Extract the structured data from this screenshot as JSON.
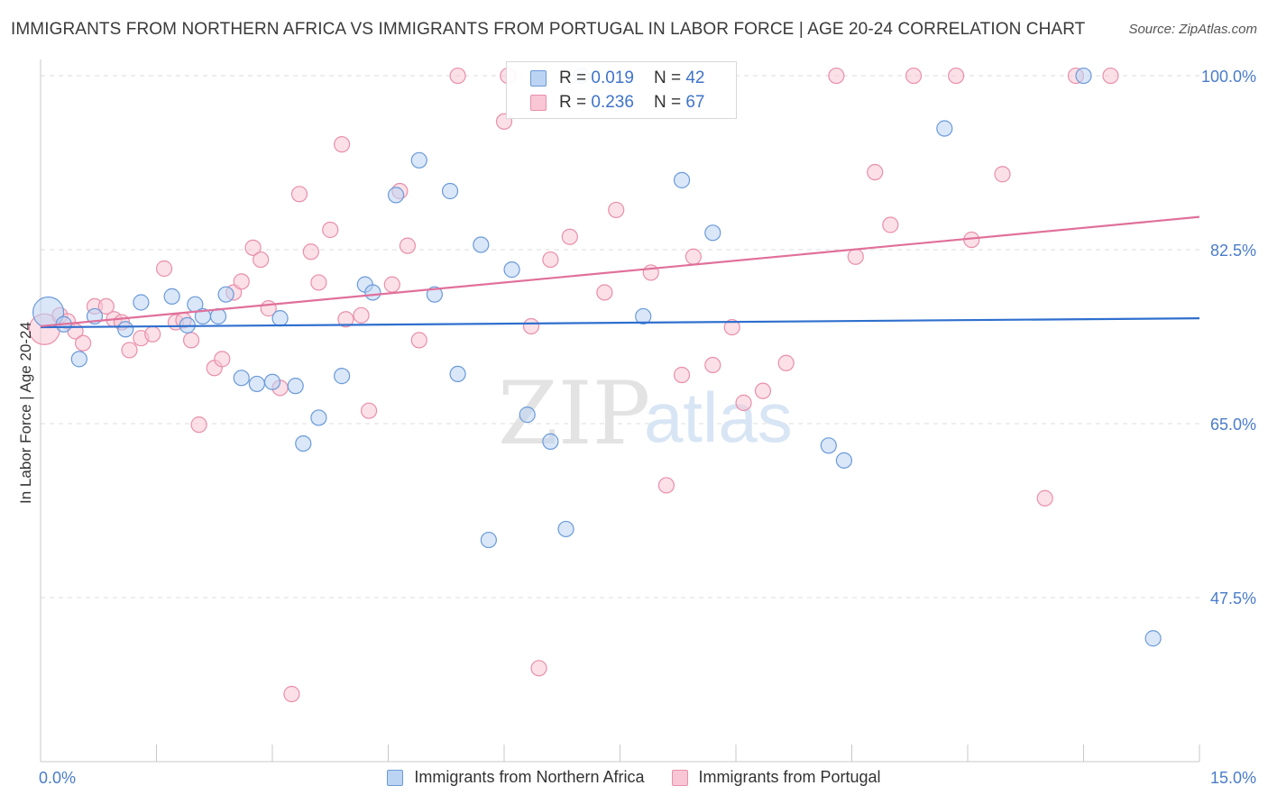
{
  "header": {
    "title": "IMMIGRANTS FROM NORTHERN AFRICA VS IMMIGRANTS FROM PORTUGAL IN LABOR FORCE | AGE 20-24 CORRELATION CHART",
    "source": "Source: ZipAtlas.com"
  },
  "watermark": {
    "zip": "ZIP",
    "atlas": "atlas"
  },
  "colors": {
    "blue_fill": "#bcd4f4",
    "blue_stroke": "#6a9ad8",
    "blue_line": "#2f6fce",
    "pink_fill": "#f8c6d4",
    "pink_stroke": "#e98fab",
    "pink_line": "#e0709a",
    "tick_label": "#4a7cc9",
    "grid": "#dddddd"
  },
  "legend": {
    "rows": [
      {
        "r_label": "R =",
        "r_value": "0.019",
        "n_label": "N =",
        "n_value": "42"
      },
      {
        "r_label": "R =",
        "r_value": "0.236",
        "n_label": "N =",
        "n_value": "67"
      }
    ]
  },
  "chart_data": {
    "type": "scatter",
    "title": "IMMIGRANTS FROM NORTHERN AFRICA VS IMMIGRANTS FROM PORTUGAL IN LABOR FORCE | AGE 20-24 CORRELATION CHART",
    "xlabel": "",
    "ylabel": "In Labor Force | Age 20-24",
    "xlim": [
      0,
      15
    ],
    "ylim": [
      31,
      102
    ],
    "x_tick_labels": [
      "0.0%",
      "15.0%"
    ],
    "y_ticks": [
      47.5,
      65.0,
      82.5,
      100.0
    ],
    "y_tick_labels": [
      "47.5%",
      "65.0%",
      "82.5%",
      "100.0%"
    ],
    "grid": "horizontal dashed",
    "legend_position": "top-center",
    "series": [
      {
        "name": "Immigrants from Northern Africa",
        "r": 0.019,
        "n": 42,
        "trend": {
          "x": [
            0,
            15
          ],
          "y": [
            74.7,
            75.6
          ]
        },
        "points": [
          {
            "x": 0.1,
            "y": 76.2,
            "big": true
          },
          {
            "x": 0.3,
            "y": 75.0
          },
          {
            "x": 0.5,
            "y": 71.5
          },
          {
            "x": 0.7,
            "y": 75.8
          },
          {
            "x": 1.1,
            "y": 74.5
          },
          {
            "x": 1.3,
            "y": 77.2
          },
          {
            "x": 1.7,
            "y": 77.8
          },
          {
            "x": 1.9,
            "y": 74.9
          },
          {
            "x": 2.0,
            "y": 77.0
          },
          {
            "x": 2.1,
            "y": 75.8
          },
          {
            "x": 2.3,
            "y": 75.8
          },
          {
            "x": 2.4,
            "y": 78.0
          },
          {
            "x": 2.6,
            "y": 69.6
          },
          {
            "x": 2.8,
            "y": 69.0
          },
          {
            "x": 3.0,
            "y": 69.2
          },
          {
            "x": 3.1,
            "y": 75.6
          },
          {
            "x": 3.3,
            "y": 68.8
          },
          {
            "x": 3.4,
            "y": 63.0
          },
          {
            "x": 3.6,
            "y": 65.6
          },
          {
            "x": 3.9,
            "y": 69.8
          },
          {
            "x": 4.2,
            "y": 79.0
          },
          {
            "x": 4.3,
            "y": 78.2
          },
          {
            "x": 4.6,
            "y": 88.0
          },
          {
            "x": 4.9,
            "y": 91.5
          },
          {
            "x": 5.1,
            "y": 78.0
          },
          {
            "x": 5.3,
            "y": 88.4
          },
          {
            "x": 5.4,
            "y": 70.0
          },
          {
            "x": 5.7,
            "y": 83.0
          },
          {
            "x": 5.8,
            "y": 53.3
          },
          {
            "x": 6.1,
            "y": 80.5
          },
          {
            "x": 6.3,
            "y": 65.9
          },
          {
            "x": 6.6,
            "y": 63.2
          },
          {
            "x": 6.8,
            "y": 54.4
          },
          {
            "x": 7.0,
            "y": 100.0
          },
          {
            "x": 7.8,
            "y": 75.8
          },
          {
            "x": 8.3,
            "y": 89.5
          },
          {
            "x": 8.7,
            "y": 84.2
          },
          {
            "x": 10.2,
            "y": 62.8
          },
          {
            "x": 10.4,
            "y": 61.3
          },
          {
            "x": 11.7,
            "y": 94.7
          },
          {
            "x": 13.5,
            "y": 100.0
          },
          {
            "x": 14.4,
            "y": 43.4
          }
        ]
      },
      {
        "name": "Immigrants from Portugal",
        "r": 0.236,
        "n": 67,
        "trend": {
          "x": [
            0,
            15
          ],
          "y": [
            74.8,
            85.8
          ]
        },
        "points": [
          {
            "x": 0.05,
            "y": 74.5,
            "big": true
          },
          {
            "x": 0.25,
            "y": 75.9
          },
          {
            "x": 0.35,
            "y": 75.3
          },
          {
            "x": 0.45,
            "y": 74.3
          },
          {
            "x": 0.55,
            "y": 73.1
          },
          {
            "x": 0.7,
            "y": 76.8
          },
          {
            "x": 0.85,
            "y": 76.8
          },
          {
            "x": 0.95,
            "y": 75.5
          },
          {
            "x": 1.05,
            "y": 75.2
          },
          {
            "x": 1.15,
            "y": 72.4
          },
          {
            "x": 1.3,
            "y": 73.6
          },
          {
            "x": 1.45,
            "y": 74.0
          },
          {
            "x": 1.6,
            "y": 80.6
          },
          {
            "x": 1.75,
            "y": 75.2
          },
          {
            "x": 1.85,
            "y": 75.4
          },
          {
            "x": 1.95,
            "y": 73.4
          },
          {
            "x": 2.05,
            "y": 64.9
          },
          {
            "x": 2.25,
            "y": 70.6
          },
          {
            "x": 2.35,
            "y": 71.5
          },
          {
            "x": 2.5,
            "y": 78.2
          },
          {
            "x": 2.6,
            "y": 79.3
          },
          {
            "x": 2.75,
            "y": 82.7
          },
          {
            "x": 2.85,
            "y": 81.5
          },
          {
            "x": 2.95,
            "y": 76.6
          },
          {
            "x": 3.1,
            "y": 68.6
          },
          {
            "x": 3.25,
            "y": 37.8
          },
          {
            "x": 3.35,
            "y": 88.1
          },
          {
            "x": 3.5,
            "y": 82.3
          },
          {
            "x": 3.6,
            "y": 79.2
          },
          {
            "x": 3.75,
            "y": 84.5
          },
          {
            "x": 3.9,
            "y": 93.1
          },
          {
            "x": 3.95,
            "y": 75.5
          },
          {
            "x": 4.15,
            "y": 75.9
          },
          {
            "x": 4.25,
            "y": 66.3
          },
          {
            "x": 4.55,
            "y": 79.0
          },
          {
            "x": 4.65,
            "y": 88.4
          },
          {
            "x": 4.75,
            "y": 82.9
          },
          {
            "x": 4.9,
            "y": 73.4
          },
          {
            "x": 5.4,
            "y": 100.0
          },
          {
            "x": 6.0,
            "y": 95.4
          },
          {
            "x": 6.05,
            "y": 100.0
          },
          {
            "x": 6.35,
            "y": 74.8
          },
          {
            "x": 6.45,
            "y": 40.4
          },
          {
            "x": 6.6,
            "y": 81.5
          },
          {
            "x": 6.85,
            "y": 83.8
          },
          {
            "x": 7.3,
            "y": 78.2
          },
          {
            "x": 7.45,
            "y": 86.5
          },
          {
            "x": 7.9,
            "y": 80.2
          },
          {
            "x": 8.1,
            "y": 58.8
          },
          {
            "x": 8.3,
            "y": 69.9
          },
          {
            "x": 8.45,
            "y": 81.8
          },
          {
            "x": 8.7,
            "y": 70.9
          },
          {
            "x": 8.95,
            "y": 74.7
          },
          {
            "x": 9.1,
            "y": 67.1
          },
          {
            "x": 9.35,
            "y": 68.3
          },
          {
            "x": 9.65,
            "y": 71.1
          },
          {
            "x": 10.3,
            "y": 100.0
          },
          {
            "x": 10.55,
            "y": 81.8
          },
          {
            "x": 10.8,
            "y": 90.3
          },
          {
            "x": 11.0,
            "y": 85.0
          },
          {
            "x": 11.3,
            "y": 100.0
          },
          {
            "x": 11.85,
            "y": 100.0
          },
          {
            "x": 12.05,
            "y": 83.5
          },
          {
            "x": 12.45,
            "y": 90.1
          },
          {
            "x": 13.0,
            "y": 57.5
          },
          {
            "x": 13.4,
            "y": 100.0
          },
          {
            "x": 13.85,
            "y": 100.0
          }
        ]
      }
    ]
  }
}
